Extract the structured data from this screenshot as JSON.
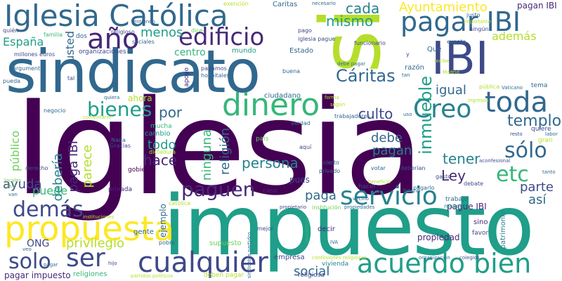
{
  "colors": {
    "background": "#ffffff",
    "palette": [
      "#440154",
      "#482878",
      "#3e4989",
      "#31688e",
      "#26828e",
      "#1f9e89",
      "#35b779",
      "#6ece58",
      "#b5de2b",
      "#fde725"
    ]
  },
  "words": {
    "iglesia": "Iglesia",
    "impuesto": "impuesto",
    "sindicato": "sindicato",
    "si": "si",
    "iglesia_catolica": "Iglesia Católica",
    "ibi_big": "IBI",
    "pagar_ibi": "pagar IBI",
    "propuesta": "propuesta",
    "acuerdo_bien": "acuerdo bien",
    "cualquier": "cualquier",
    "dinero": "dinero",
    "toda": "toda",
    "edificio": "edificio",
    "ano": "año",
    "creo": "Creo",
    "servicio": "servicio",
    "paguen": "paguen",
    "demas": "demás",
    "ser": "ser",
    "solo": "solo",
    "solo_acc": "sólo",
    "inmueble": "inmueble",
    "bienes": "bienes",
    "caritas": "Cáritas",
    "ayuntamiento": "Ayuntamiento",
    "cada": "cada",
    "mismo": "mismo",
    "menos": "menos",
    "espana": "España",
    "usted": "usted",
    "etc": "etc",
    "templo": "templo",
    "igual": "igual",
    "culto": "culto",
    "tener": "tener",
    "debe": "debe",
    "pagan": "pagan",
    "ley": "Ley",
    "religion": "religión",
    "ninguna": "ninguna",
    "persona": "persona",
    "paga": "paga",
    "publico": "público",
    "deberia": "debería",
    "parece": "parece",
    "paga_ibi": "paga IBI",
    "hace": "hace",
    "todo": "todo",
    "por": "por",
    "ayuda": "ayuda",
    "puede": "puede",
    "ong": "ONG",
    "privilegio": "privilegio",
    "social": "social",
    "asi": "así",
    "parte": "parte",
    "ademas": "además",
    "centro": "centro",
    "propiedad": "propiedad",
    "pague_ibi": "pague IBI",
    "pagar_impuesto": "pagar impuesto",
    "pagan_ibi": "pagan IBI",
    "caritas_small": "Caritas",
    "exencion": "exención",
    "que": "Qué",
    "estado": "Estado",
    "mundo": "mundo",
    "pues": "pues",
    "ciudadano": "ciudadano",
    "ahora": "ahora",
    "cambio": "cambio",
    "mucha": "mucha",
    "privada": "privada",
    "gobierno": "gobierno",
    "ejemplo": "ejemplo",
    "supuesto": "supuesto",
    "empresa": "empresa",
    "decir": "decir",
    "gente": "gente",
    "vivienda": "vivienda",
    "sino": "sino",
    "favor": "favor",
    "patrimonio": "patrimonio",
    "caso": "caso",
    "hacer": "hacer",
    "razon": "razón",
    "apoyo": "apoyo",
    "hospitales": "hospitales",
    "pagamos": "pagamos",
    "organizaciones": "organizaciones",
    "millones_euros": "millones euros",
    "iglesia_pague": "iglesia pague",
    "funcionario": "funcionario",
    "buena": "buena",
    "religioso": "religioso",
    "dos": "dos",
    "familia": "familia",
    "pago": "pago",
    "dice": "dice",
    "quien": "quién",
    "tal": "tal",
    "argumento": "argumento",
    "pueda": "pueda",
    "pais": "país",
    "verdad": "verdad",
    "trabajadores": "trabajadores",
    "dictadura": "dictadura",
    "gracias": "Gracias",
    "nada": "Nada",
    "derecho": "derecho",
    "negocio": "negocio",
    "quiere": "quiere",
    "tema": "tema",
    "vaticano": "Vaticano",
    "publica": "pública",
    "exento": "exento",
    "justo": "justo",
    "ningun": "ningún",
    "importante": "importante",
    "catolica": "católica",
    "religiones": "religiones",
    "partidos_politicos": "partidos políticos",
    "deben_pagar": "deben pagar",
    "institucion": "institución",
    "propiedades": "propiedades",
    "mayoria": "mayoría",
    "trabajo": "trabajo",
    "gasto": "gasto",
    "religiosa": "religiosa",
    "colegios": "colegios",
    "debate": "debate",
    "pagarlo": "pagarlo",
    "hecho": "hecho",
    "beneficio": "beneficio",
    "votar": "votar",
    "deberian": "deberían",
    "aqui": "aquí",
    "privado": "privado",
    "cierto": "cierto",
    "iva": "IVA",
    "mejor": "mejor",
    "hijo": "hijo",
    "pobre": "pobre",
    "sociales": "sociales",
    "recibe": "recibe",
    "madrid": "Madrid",
    "gran": "gran",
    "resto": "resto",
    "labor": "labor",
    "aconfesional": "aconfesional",
    "tanto": "tanto",
    "ingresos": "ingresos",
    "vecino": "vecino",
    "forma": "forma",
    "segun": "según",
    "sindicatos_partidos": "sindicatos partidos",
    "van": "van",
    "residencia": "residencia",
    "organizacion": "organización",
    "veo": "veo",
    "entiendo": "entiendo",
    "necesario": "necesario",
    "debe_pagar": "debe pagar",
    "pagar": "pagar",
    "instituciones": "instituciones",
    "comentario": "comentario",
    "uso": "uso",
    "tan": "tan",
    "y": "y",
    "locales": "locales",
    "claro": "claro",
    "confesiones_religiosas": "confesiones religiosas",
    "propietario": "propietario",
    "quiera": "quiera",
    "suelo": "suelo",
    "da": "da",
    "ve": "ve",
    "cosa": "cosa",
    "nuevo": "nuevo",
    "sobre": "sobre",
    "ir": "ir",
    "vez": "vez",
    "ciudad": "ciudad",
    "pueden": "pueden"
  }
}
